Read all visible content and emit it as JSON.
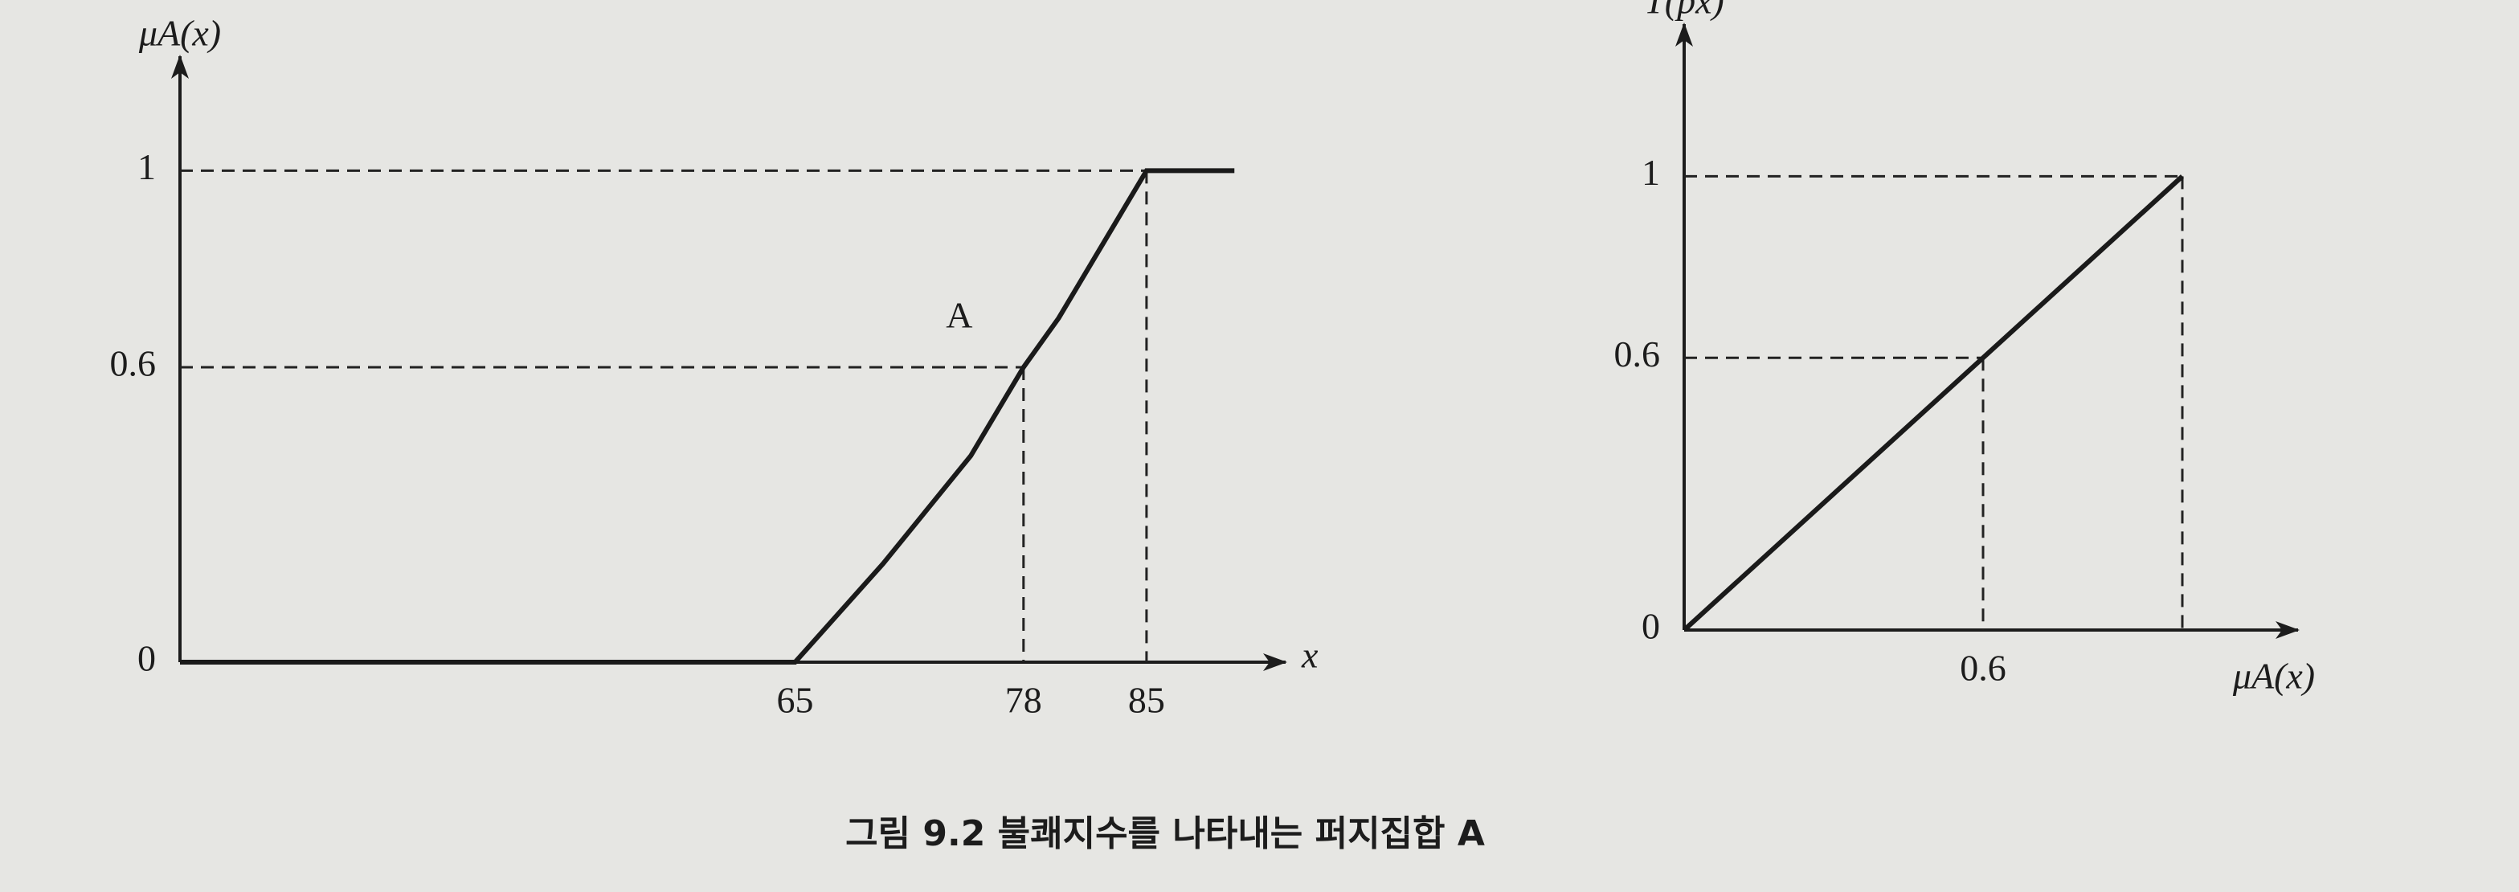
{
  "chart_data": [
    {
      "type": "line",
      "x_label": "x",
      "y_label": "μA(x)",
      "annotation": "A",
      "x": [
        30,
        65,
        70,
        75,
        78,
        80,
        85,
        90
      ],
      "values": [
        0,
        0,
        0.2,
        0.42,
        0.6,
        0.7,
        1,
        1
      ],
      "color": "#1a1a1a",
      "xlim": [
        30,
        92
      ],
      "ylim": [
        0,
        1.2
      ],
      "xticks": [
        65,
        78,
        85
      ],
      "yticks": [
        0,
        0.6,
        1
      ],
      "guides": [
        {
          "x": 78,
          "y": 0.6
        },
        {
          "x": 85,
          "y": 1
        }
      ],
      "grid": false
    },
    {
      "type": "line",
      "x_label": "μA(x)",
      "y_label": "T(px)",
      "x": [
        0,
        1
      ],
      "values": [
        0,
        1
      ],
      "color": "#1a1a1a",
      "xlim": [
        0,
        1.2
      ],
      "ylim": [
        0,
        1.3
      ],
      "xticks": [
        0.6
      ],
      "yticks": [
        0,
        0.6,
        1
      ],
      "guides": [
        {
          "x": 0.6,
          "y": 0.6
        },
        {
          "x": 1,
          "y": 1
        }
      ],
      "grid": false
    }
  ],
  "caption": "그림 9.2  불쾌지수를 나타내는 퍼지집합 A"
}
